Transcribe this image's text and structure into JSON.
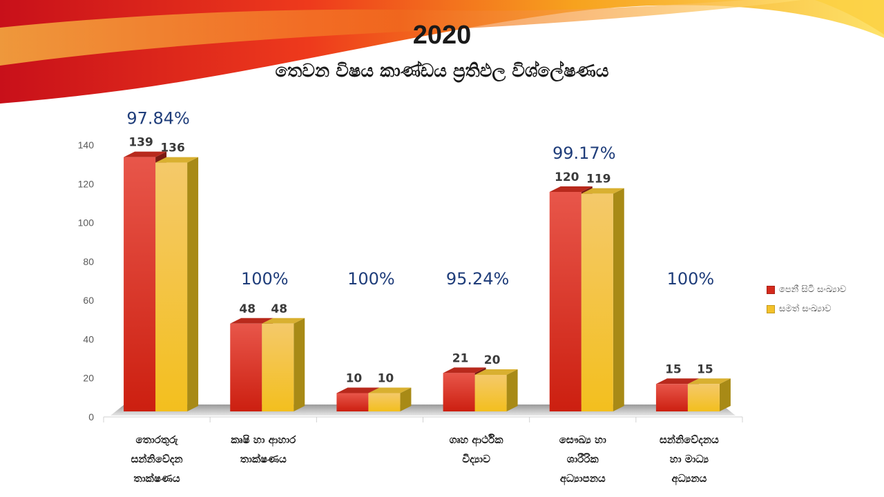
{
  "title": "2020",
  "subtitle": "තෙවන විෂය කාණ්ඩය ප්‍රතිඵල විශ්ලේෂණය",
  "colors": {
    "series1": "#d42a1c",
    "series2": "#f3c12a",
    "percent": "#1f3d7a"
  },
  "legend": [
    {
      "label": "පෙනී සිටි සංඛ්‍යාව",
      "color": "#d42a1c"
    },
    {
      "label": "සමත් සංඛ්‍යාව",
      "color": "#f3c12a"
    }
  ],
  "chart_data": {
    "type": "bar",
    "title": "2020",
    "categories": [
      [
        "තොරතුරු",
        "සන්නිවේදන",
        "තාක්ෂණය"
      ],
      [
        "කෘෂි හා ආහාර",
        "තාක්ෂණය"
      ],
      [],
      [
        "ගෘහ ආර්ථික",
        "විද්‍යාව"
      ],
      [
        "සෞඛ්‍ය හා",
        "ශාරීරික",
        "අධ්‍යාපනය"
      ],
      [
        "සන්නිවේදනය",
        "හා මාධ්‍ය",
        "අධ්‍යනය"
      ]
    ],
    "series": [
      {
        "name": "පෙනී සිටි සංඛ්‍යාව",
        "values": [
          139,
          48,
          10,
          21,
          120,
          15
        ]
      },
      {
        "name": "සමත් සංඛ්‍යාව",
        "values": [
          136,
          48,
          10,
          20,
          119,
          15
        ]
      }
    ],
    "percentages": [
      "97.84%",
      "100%",
      "100%",
      "95.24%",
      "99.17%",
      "100%"
    ],
    "ylim": [
      0,
      140
    ],
    "yticks": [
      0,
      20,
      40,
      60,
      80,
      100,
      120,
      140
    ],
    "grid": false,
    "legend_position": "right"
  }
}
